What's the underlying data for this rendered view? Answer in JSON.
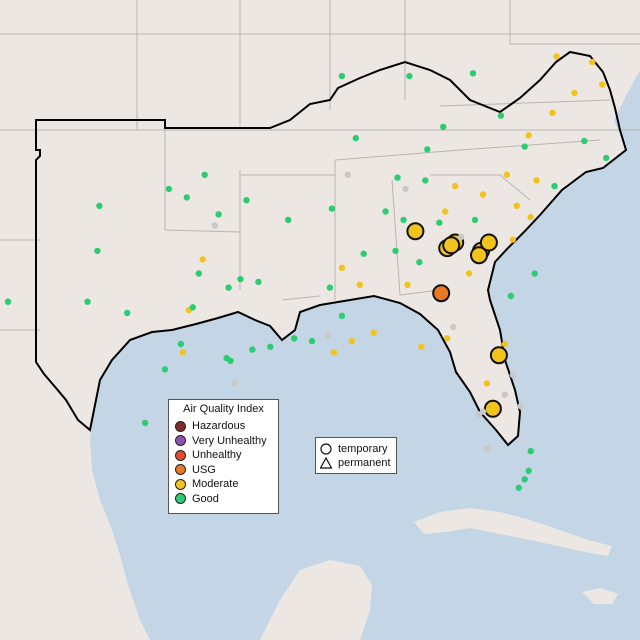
{
  "colors": {
    "water": "#c4d6e6",
    "land": "#ece7e3",
    "border": "#b9b4b1",
    "region_outline": "#000000",
    "hazardous": "#7e2d2d",
    "very_unhealthy": "#8f4fb3",
    "unhealthy": "#e24b2c",
    "usg": "#ea7a22",
    "moderate": "#f2c21d",
    "good": "#2dcc72",
    "no_data": "#c8c8c8"
  },
  "legend": {
    "title": "Air Quality Index",
    "items": [
      {
        "label": "Hazardous",
        "color_key": "hazardous"
      },
      {
        "label": "Very Unhealthy",
        "color_key": "very_unhealthy"
      },
      {
        "label": "Unhealthy",
        "color_key": "unhealthy"
      },
      {
        "label": "USG",
        "color_key": "usg"
      },
      {
        "label": "Moderate",
        "color_key": "moderate"
      },
      {
        "label": "Good",
        "color_key": "good"
      }
    ]
  },
  "monitor_types": {
    "temporary": "temporary",
    "permanent": "permanent"
  },
  "monitors": [
    {
      "aqi": "usg",
      "type": "temporary",
      "lon": -84.6,
      "lat": 32.1
    },
    {
      "aqi": "moderate",
      "type": "temporary",
      "lon": -85.9,
      "lat": 34.3
    },
    {
      "aqi": "moderate",
      "type": "temporary",
      "lon": -84.3,
      "lat": 33.7
    },
    {
      "aqi": "moderate",
      "type": "temporary",
      "lon": -83.9,
      "lat": 33.9
    },
    {
      "aqi": "moderate",
      "type": "temporary",
      "lon": -84.1,
      "lat": 33.8
    },
    {
      "aqi": "moderate",
      "type": "temporary",
      "lon": -82.6,
      "lat": 33.6
    },
    {
      "aqi": "moderate",
      "type": "temporary",
      "lon": -82.7,
      "lat": 33.45
    },
    {
      "aqi": "moderate",
      "type": "temporary",
      "lon": -82.2,
      "lat": 33.9
    },
    {
      "aqi": "moderate",
      "type": "temporary",
      "lon": -81.7,
      "lat": 29.9
    },
    {
      "aqi": "moderate",
      "type": "temporary",
      "lon": -82.0,
      "lat": 28.0
    },
    {
      "aqi": "good",
      "type": "temporary",
      "lon": -98.3,
      "lat": 35.8
    },
    {
      "aqi": "good",
      "type": "temporary",
      "lon": -96.5,
      "lat": 36.3
    },
    {
      "aqi": "good",
      "type": "temporary",
      "lon": -95.8,
      "lat": 34.9
    },
    {
      "aqi": "good",
      "type": "temporary",
      "lon": -97.4,
      "lat": 35.5
    },
    {
      "aqi": "good",
      "type": "temporary",
      "lon": -94.4,
      "lat": 35.4
    },
    {
      "aqi": "good",
      "type": "temporary",
      "lon": -92.3,
      "lat": 34.7
    },
    {
      "aqi": "good",
      "type": "temporary",
      "lon": -90.1,
      "lat": 35.1
    },
    {
      "aqi": "good",
      "type": "temporary",
      "lon": -86.8,
      "lat": 36.2
    },
    {
      "aqi": "good",
      "type": "temporary",
      "lon": -85.3,
      "lat": 37.2
    },
    {
      "aqi": "good",
      "type": "temporary",
      "lon": -88.5,
      "lat": 33.5
    },
    {
      "aqi": "good",
      "type": "temporary",
      "lon": -90.2,
      "lat": 32.3
    },
    {
      "aqi": "good",
      "type": "temporary",
      "lon": -96.8,
      "lat": 32.8
    },
    {
      "aqi": "good",
      "type": "temporary",
      "lon": -95.4,
      "lat": 29.8
    },
    {
      "aqi": "good",
      "type": "temporary",
      "lon": -95.2,
      "lat": 29.7
    },
    {
      "aqi": "good",
      "type": "temporary",
      "lon": -98.5,
      "lat": 29.4
    },
    {
      "aqi": "good",
      "type": "temporary",
      "lon": -97.7,
      "lat": 30.3
    },
    {
      "aqi": "good",
      "type": "temporary",
      "lon": -94.1,
      "lat": 30.1
    },
    {
      "aqi": "good",
      "type": "temporary",
      "lon": -93.2,
      "lat": 30.2
    },
    {
      "aqi": "good",
      "type": "temporary",
      "lon": -91.1,
      "lat": 30.4
    },
    {
      "aqi": "good",
      "type": "temporary",
      "lon": -97.4,
      "lat": 27.8
    },
    {
      "aqi": "good",
      "type": "temporary",
      "lon": -99.5,
      "lat": 27.5
    },
    {
      "aqi": "good",
      "type": "temporary",
      "lon": -80.2,
      "lat": 25.8
    },
    {
      "aqi": "good",
      "type": "temporary",
      "lon": -80.1,
      "lat": 26.5
    },
    {
      "aqi": "good",
      "type": "temporary",
      "lon": -80.4,
      "lat": 25.5
    },
    {
      "aqi": "good",
      "type": "temporary",
      "lon": -80.7,
      "lat": 25.2
    },
    {
      "aqi": "good",
      "type": "temporary",
      "lon": -81.1,
      "lat": 32.0
    },
    {
      "aqi": "good",
      "type": "temporary",
      "lon": -79.9,
      "lat": 32.8
    },
    {
      "aqi": "good",
      "type": "temporary",
      "lon": -78.9,
      "lat": 35.9
    },
    {
      "aqi": "good",
      "type": "temporary",
      "lon": -77.4,
      "lat": 37.5
    },
    {
      "aqi": "good",
      "type": "temporary",
      "lon": -76.3,
      "lat": 36.9
    },
    {
      "aqi": "good",
      "type": "temporary",
      "lon": -80.4,
      "lat": 37.3
    },
    {
      "aqi": "good",
      "type": "temporary",
      "lon": -81.6,
      "lat": 38.4
    },
    {
      "aqi": "good",
      "type": "temporary",
      "lon": -84.5,
      "lat": 38.0
    },
    {
      "aqi": "good",
      "type": "temporary",
      "lon": -86.2,
      "lat": 39.8
    },
    {
      "aqi": "good",
      "type": "temporary",
      "lon": -83.0,
      "lat": 39.9
    },
    {
      "aqi": "good",
      "type": "temporary",
      "lon": -89.6,
      "lat": 39.8
    },
    {
      "aqi": "good",
      "type": "temporary",
      "lon": -88.9,
      "lat": 37.6
    },
    {
      "aqi": "good",
      "type": "temporary",
      "lon": -86.5,
      "lat": 34.7
    },
    {
      "aqi": "moderate",
      "type": "temporary",
      "lon": -84.4,
      "lat": 35.0
    },
    {
      "aqi": "moderate",
      "type": "temporary",
      "lon": -83.9,
      "lat": 35.9
    },
    {
      "aqi": "moderate",
      "type": "temporary",
      "lon": -82.5,
      "lat": 35.6
    },
    {
      "aqi": "moderate",
      "type": "temporary",
      "lon": -80.8,
      "lat": 35.2
    },
    {
      "aqi": "moderate",
      "type": "temporary",
      "lon": -81.0,
      "lat": 34.0
    },
    {
      "aqi": "moderate",
      "type": "temporary",
      "lon": -79.8,
      "lat": 36.1
    },
    {
      "aqi": "moderate",
      "type": "temporary",
      "lon": -80.2,
      "lat": 37.7
    },
    {
      "aqi": "moderate",
      "type": "temporary",
      "lon": -79.0,
      "lat": 38.5
    },
    {
      "aqi": "moderate",
      "type": "temporary",
      "lon": -77.9,
      "lat": 39.2
    },
    {
      "aqi": "moderate",
      "type": "temporary",
      "lon": -78.8,
      "lat": 40.5
    },
    {
      "aqi": "moderate",
      "type": "temporary",
      "lon": -77.0,
      "lat": 40.3
    },
    {
      "aqi": "moderate",
      "type": "temporary",
      "lon": -76.5,
      "lat": 39.5
    },
    {
      "aqi": "moderate",
      "type": "temporary",
      "lon": -86.3,
      "lat": 32.4
    },
    {
      "aqi": "moderate",
      "type": "temporary",
      "lon": -88.0,
      "lat": 30.7
    },
    {
      "aqi": "moderate",
      "type": "temporary",
      "lon": -89.1,
      "lat": 30.4
    },
    {
      "aqi": "moderate",
      "type": "temporary",
      "lon": -90.0,
      "lat": 30.0
    },
    {
      "aqi": "moderate",
      "type": "temporary",
      "lon": -85.6,
      "lat": 30.2
    },
    {
      "aqi": "moderate",
      "type": "temporary",
      "lon": -84.3,
      "lat": 30.5
    },
    {
      "aqi": "moderate",
      "type": "temporary",
      "lon": -83.2,
      "lat": 32.8
    },
    {
      "aqi": "moderate",
      "type": "temporary",
      "lon": -81.4,
      "lat": 30.3
    },
    {
      "aqi": "moderate",
      "type": "temporary",
      "lon": -82.3,
      "lat": 28.9
    },
    {
      "aqi": "moderate",
      "type": "temporary",
      "lon": -96.6,
      "lat": 33.3
    },
    {
      "aqi": "moderate",
      "type": "temporary",
      "lon": -97.3,
      "lat": 31.5
    },
    {
      "aqi": "moderate",
      "type": "temporary",
      "lon": -97.6,
      "lat": 30.0
    },
    {
      "aqi": "moderate",
      "type": "temporary",
      "lon": -89.6,
      "lat": 33.0
    },
    {
      "aqi": "moderate",
      "type": "temporary",
      "lon": -88.7,
      "lat": 32.4
    },
    {
      "aqi": "moderate",
      "type": "temporary",
      "lon": -81.3,
      "lat": 36.3
    },
    {
      "aqi": "moderate",
      "type": "temporary",
      "lon": -80.1,
      "lat": 34.8
    },
    {
      "aqi": "good",
      "type": "temporary",
      "lon": -85.7,
      "lat": 33.2
    },
    {
      "aqi": "good",
      "type": "temporary",
      "lon": -86.9,
      "lat": 33.6
    },
    {
      "aqi": "good",
      "type": "temporary",
      "lon": -84.7,
      "lat": 34.6
    },
    {
      "aqi": "good",
      "type": "temporary",
      "lon": -82.9,
      "lat": 34.7
    },
    {
      "aqi": "good",
      "type": "temporary",
      "lon": -85.4,
      "lat": 36.1
    },
    {
      "aqi": "good",
      "type": "temporary",
      "lon": -87.4,
      "lat": 35.0
    },
    {
      "aqi": "good",
      "type": "temporary",
      "lon": -89.6,
      "lat": 31.3
    },
    {
      "aqi": "good",
      "type": "temporary",
      "lon": -92.0,
      "lat": 30.5
    },
    {
      "aqi": "good",
      "type": "temporary",
      "lon": -93.8,
      "lat": 32.5
    },
    {
      "aqi": "good",
      "type": "temporary",
      "lon": -94.7,
      "lat": 32.6
    },
    {
      "aqi": "good",
      "type": "temporary",
      "lon": -95.3,
      "lat": 32.3
    },
    {
      "aqi": "good",
      "type": "temporary",
      "lon": -97.1,
      "lat": 31.6
    },
    {
      "aqi": "good",
      "type": "temporary",
      "lon": -100.4,
      "lat": 31.4
    },
    {
      "aqi": "good",
      "type": "temporary",
      "lon": -101.9,
      "lat": 33.6
    },
    {
      "aqi": "good",
      "type": "temporary",
      "lon": -101.8,
      "lat": 35.2
    },
    {
      "aqi": "good",
      "type": "temporary",
      "lon": -102.4,
      "lat": 31.8
    },
    {
      "aqi": "good",
      "type": "temporary",
      "lon": -106.4,
      "lat": 31.8
    },
    {
      "aqi": "no_data",
      "type": "temporary",
      "lon": -80.6,
      "lat": 28.1
    },
    {
      "aqi": "no_data",
      "type": "temporary",
      "lon": -81.4,
      "lat": 28.5
    },
    {
      "aqi": "no_data",
      "type": "temporary",
      "lon": -82.5,
      "lat": 27.9
    },
    {
      "aqi": "no_data",
      "type": "temporary",
      "lon": -82.7,
      "lat": 27.8
    },
    {
      "aqi": "no_data",
      "type": "temporary",
      "lon": -81.0,
      "lat": 29.2
    },
    {
      "aqi": "no_data",
      "type": "temporary",
      "lon": -84.0,
      "lat": 30.9
    },
    {
      "aqi": "no_data",
      "type": "temporary",
      "lon": -90.3,
      "lat": 30.6
    },
    {
      "aqi": "no_data",
      "type": "temporary",
      "lon": -96.0,
      "lat": 34.5
    },
    {
      "aqi": "no_data",
      "type": "temporary",
      "lon": -83.6,
      "lat": 34.1
    },
    {
      "aqi": "no_data",
      "type": "temporary",
      "lon": -89.3,
      "lat": 36.3
    },
    {
      "aqi": "no_data",
      "type": "temporary",
      "lon": -86.4,
      "lat": 35.8
    },
    {
      "aqi": "no_data",
      "type": "temporary",
      "lon": -95.0,
      "lat": 28.9
    },
    {
      "aqi": "no_data",
      "type": "temporary",
      "lon": -82.3,
      "lat": 26.6
    }
  ]
}
